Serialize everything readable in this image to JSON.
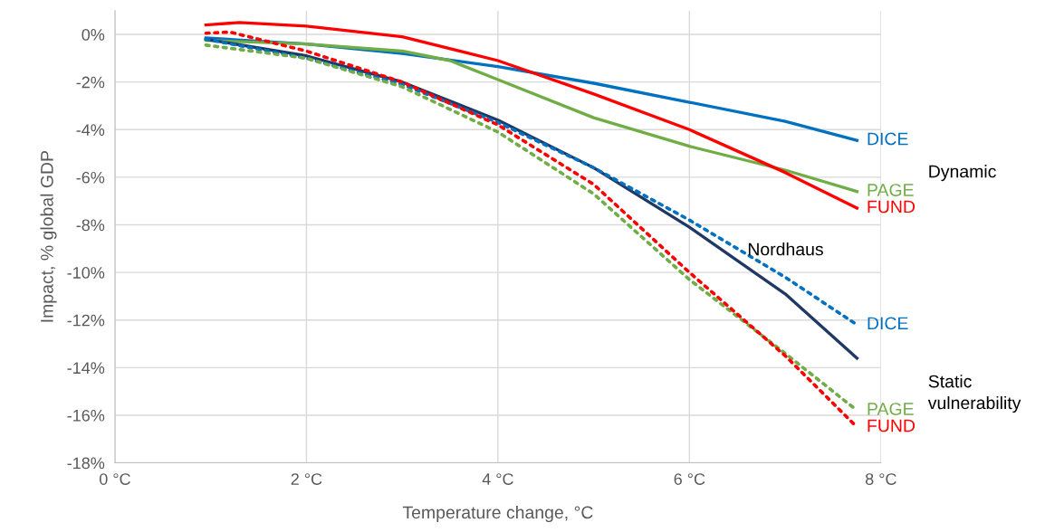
{
  "chart_data": {
    "type": "line",
    "xlabel": "Temperature change, °C",
    "ylabel": "Impact, % global GDP",
    "xlim": [
      0,
      8
    ],
    "ylim": [
      -18,
      1
    ],
    "xticks": [
      {
        "value": 0,
        "label": "0 °C"
      },
      {
        "value": 2,
        "label": "2 °C"
      },
      {
        "value": 4,
        "label": "4 °C"
      },
      {
        "value": 6,
        "label": "6 °C"
      },
      {
        "value": 8,
        "label": "8 °C"
      }
    ],
    "yticks": [
      {
        "value": 0,
        "label": "0%"
      },
      {
        "value": -2,
        "label": "-2%"
      },
      {
        "value": -4,
        "label": "-4%"
      },
      {
        "value": -6,
        "label": "-6%"
      },
      {
        "value": -8,
        "label": "-8%"
      },
      {
        "value": -10,
        "label": "-10%"
      },
      {
        "value": -12,
        "label": "-12%"
      },
      {
        "value": -14,
        "label": "-14%"
      },
      {
        "value": -16,
        "label": "-16%"
      },
      {
        "value": -18,
        "label": "-18%"
      }
    ],
    "grid": true,
    "legend": false,
    "marker": "none",
    "series": [
      {
        "name": "DICE",
        "color": "#0070c0",
        "line_style": "solid",
        "x": [
          0.95,
          2,
          3,
          4,
          5,
          6,
          7,
          7.75
        ],
        "values": [
          -0.15,
          -0.4,
          -0.8,
          -1.35,
          -2.05,
          -2.85,
          -3.65,
          -4.45
        ]
      },
      {
        "name": "PAGE",
        "color": "#70ad47",
        "line_style": "solid",
        "x": [
          0.95,
          2,
          3,
          3.5,
          4,
          5,
          6,
          7,
          7.75
        ],
        "values": [
          -0.25,
          -0.4,
          -0.7,
          -1.1,
          -1.9,
          -3.5,
          -4.7,
          -5.7,
          -6.6
        ]
      },
      {
        "name": "FUND",
        "color": "#ff0000",
        "line_style": "solid",
        "x": [
          0.95,
          1.3,
          2,
          3,
          4,
          5,
          6,
          7,
          7.75
        ],
        "values": [
          0.4,
          0.5,
          0.35,
          -0.1,
          -1.1,
          -2.5,
          -4.0,
          -5.8,
          -7.3
        ]
      },
      {
        "color": "#203864",
        "line_style": "solid",
        "x": [
          0.95,
          2,
          3,
          4,
          5,
          6,
          7,
          7.75
        ],
        "values": [
          -0.2,
          -0.9,
          -2.0,
          -3.6,
          -5.6,
          -8.1,
          -10.9,
          -13.6
        ]
      },
      {
        "name": "DICE",
        "color": "#0070c0",
        "line_style": "dotted",
        "x": [
          0.95,
          2,
          3,
          4,
          5,
          6,
          7,
          7.75
        ],
        "values": [
          -0.2,
          -1.0,
          -2.1,
          -3.7,
          -5.6,
          -7.8,
          -10.2,
          -12.2
        ]
      },
      {
        "name": "PAGE",
        "color": "#70ad47",
        "line_style": "dotted",
        "x": [
          0.95,
          2,
          3,
          4,
          5,
          6,
          7,
          7.75
        ],
        "values": [
          -0.45,
          -1.0,
          -2.2,
          -4.1,
          -6.7,
          -10.3,
          -13.4,
          -15.8
        ]
      },
      {
        "name": "FUND",
        "color": "#ff0000",
        "line_style": "dotted",
        "x": [
          0.95,
          1.2,
          2,
          3,
          4,
          5,
          6,
          7,
          7.75
        ],
        "values": [
          0.05,
          0.1,
          -0.7,
          -2.0,
          -3.8,
          -6.3,
          -10.0,
          -13.5,
          -16.5
        ]
      }
    ],
    "annotations": [
      {
        "text": "Nordhaus",
        "x": 6.5,
        "y": -9.3
      },
      "Dynamic",
      "Static\nvulnerability"
    ]
  }
}
